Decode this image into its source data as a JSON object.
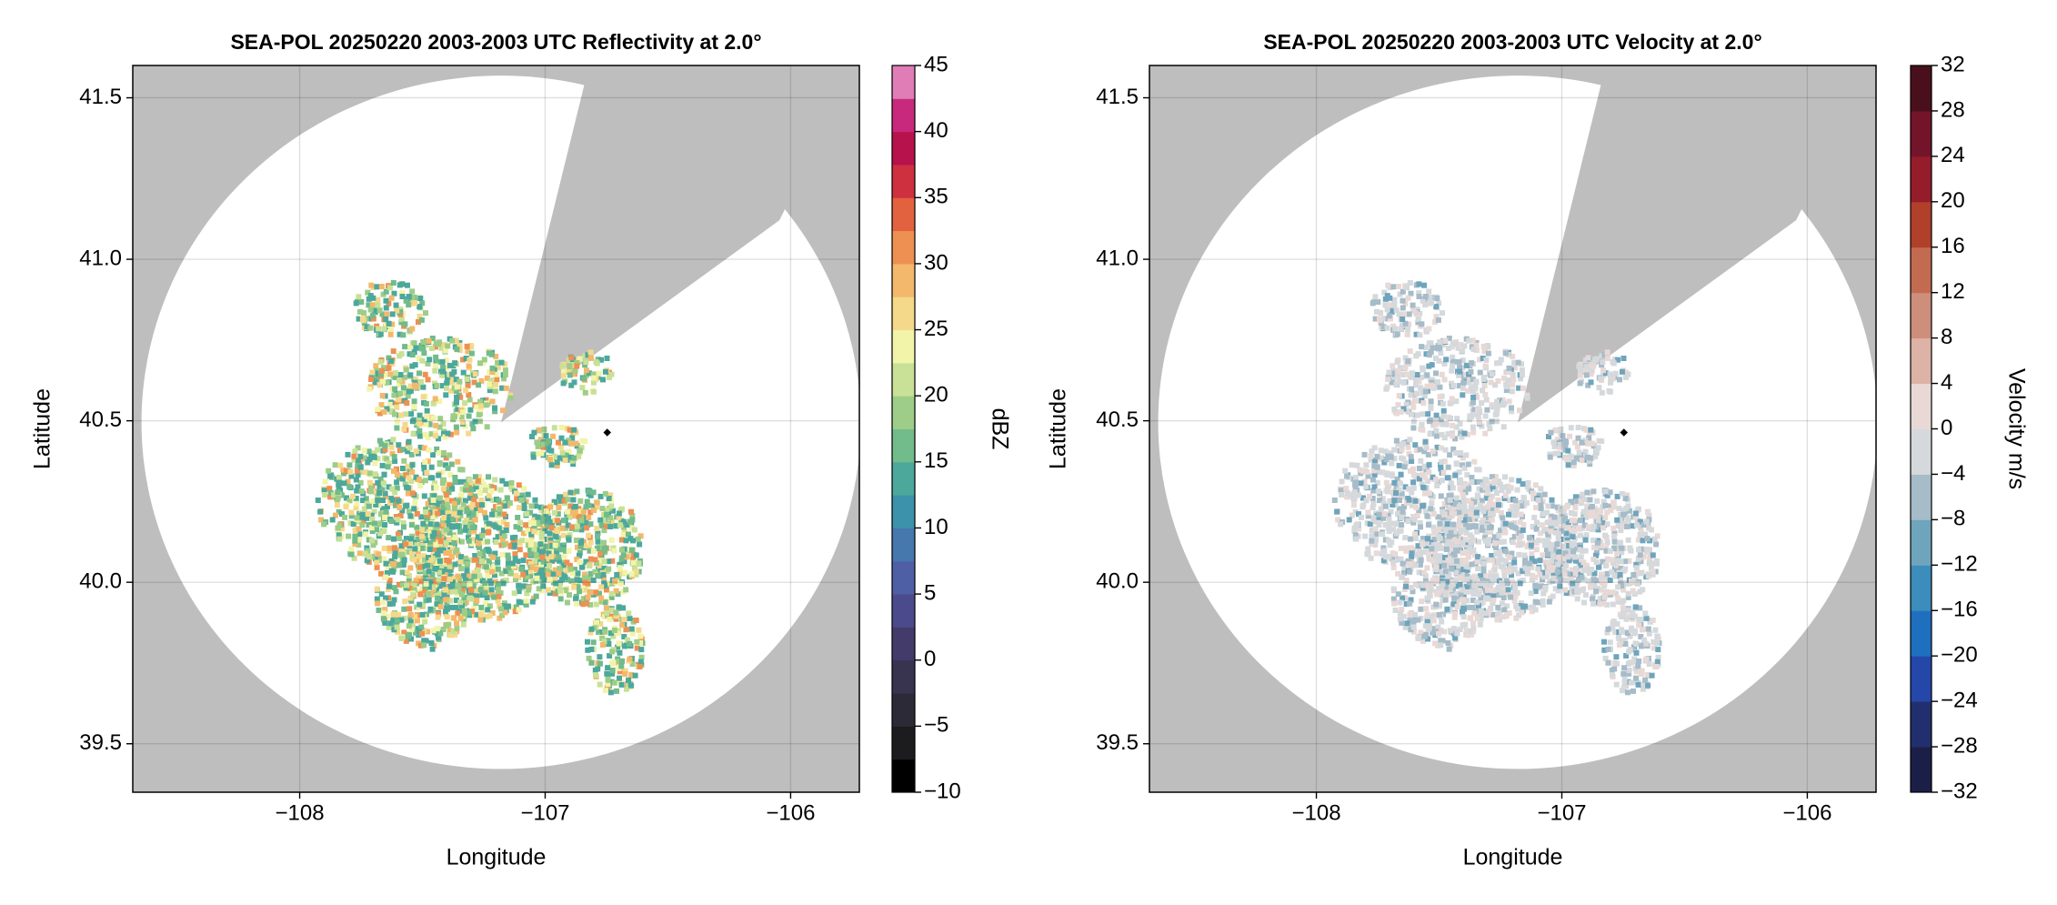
{
  "chart_data": [
    {
      "type": "radar-ppi",
      "title": "SEA-POL 20250220 2003-2003 UTC Reflectivity at 2.0°",
      "x_label": "Longitude",
      "y_label": "Latitude",
      "xlim": [
        -108.68,
        -105.72
      ],
      "ylim": [
        39.35,
        41.6
      ],
      "xticks": [
        {
          "value": -108,
          "label": "−108"
        },
        {
          "value": -107,
          "label": "−107"
        },
        {
          "value": -106,
          "label": "−106"
        }
      ],
      "yticks": [
        39.5,
        {
          "value": 40,
          "label": "40.0"
        },
        40.5,
        {
          "value": 41,
          "label": "41.0"
        },
        41.5
      ],
      "grid": true,
      "colorbar": {
        "label": "dBZ",
        "lim": [
          -10,
          45
        ],
        "ticks": [
          {
            "value": -10,
            "label": "−10"
          },
          {
            "value": -5,
            "label": "−5"
          },
          0,
          5,
          10,
          15,
          20,
          25,
          30,
          35,
          40,
          45
        ],
        "colors": [
          "#000000",
          "#1c1c1f",
          "#2c2a36",
          "#38334f",
          "#433b69",
          "#4b4a8c",
          "#4f5fa6",
          "#4677ad",
          "#3b92aa",
          "#4ca89b",
          "#72bb8b",
          "#9dcd88",
          "#c8e196",
          "#f2f4a9",
          "#f5d98a",
          "#f3b86b",
          "#ee9052",
          "#e2623f",
          "#ce3040",
          "#b8124d",
          "#c8297c",
          "#e07cb6"
        ]
      }
    },
    {
      "type": "radar-ppi",
      "title": "SEA-POL 20250220 2003-2003 UTC Velocity at 2.0°",
      "x_label": "Longitude",
      "y_label": "Latitude",
      "xlim": [
        -108.68,
        -105.72
      ],
      "ylim": [
        39.35,
        41.6
      ],
      "xticks": [
        {
          "value": -108,
          "label": "−108"
        },
        {
          "value": -107,
          "label": "−107"
        },
        {
          "value": -106,
          "label": "−106"
        }
      ],
      "yticks": [
        39.5,
        {
          "value": 40,
          "label": "40.0"
        },
        40.5,
        {
          "value": 41,
          "label": "41.0"
        },
        41.5
      ],
      "grid": true,
      "colorbar": {
        "label": "Velocity m/s",
        "lim": [
          -32,
          32
        ],
        "ticks": [
          {
            "value": -32,
            "label": "−32"
          },
          {
            "value": -28,
            "label": "−28"
          },
          {
            "value": -24,
            "label": "−24"
          },
          {
            "value": -20,
            "label": "−20"
          },
          {
            "value": -16,
            "label": "−16"
          },
          {
            "value": -12,
            "label": "−12"
          },
          {
            "value": -8,
            "label": "−8"
          },
          {
            "value": -4,
            "label": "−4"
          },
          0,
          4,
          8,
          12,
          16,
          20,
          24,
          28,
          32
        ],
        "colors": [
          "#1b1f48",
          "#222f6e",
          "#2447a9",
          "#1f6fbf",
          "#3c8cbc",
          "#6ea5bc",
          "#a6bcc8",
          "#d5d9dc",
          "#e8d9d6",
          "#dcb3a6",
          "#cd8e7b",
          "#c26b50",
          "#b1402b",
          "#951d2b",
          "#73142a",
          "#4a0f1c"
        ]
      }
    }
  ]
}
